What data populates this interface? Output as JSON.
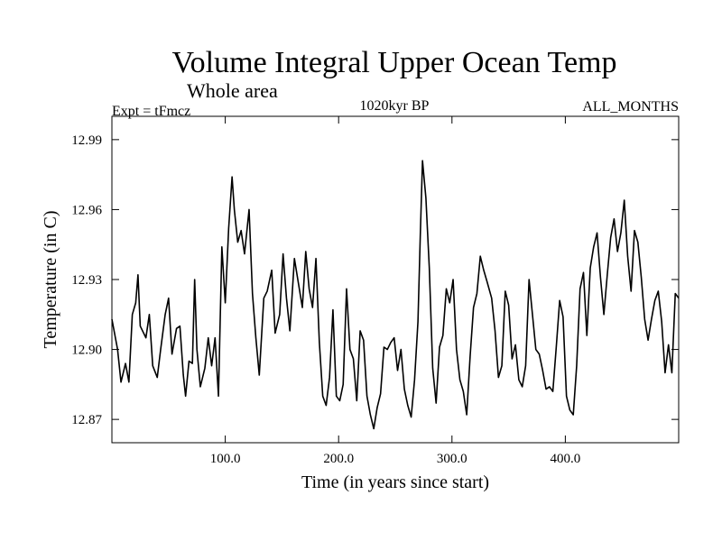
{
  "chart_data": {
    "type": "line",
    "title": "Volume Integral Upper Ocean Temp",
    "subtitle": "Whole area",
    "expt_label": "Expt = tFmcz",
    "period_label": "1020kyr BP",
    "months_label": "ALL_MONTHS",
    "xlabel": "Time (in years since start)",
    "ylabel": "Temperature (in C)",
    "xlim": [
      0,
      500
    ],
    "ylim": [
      12.86,
      13.0
    ],
    "x_ticks": [
      100,
      200,
      300,
      400
    ],
    "x_tick_labels": [
      "100.0",
      "200.0",
      "300.0",
      "400.0"
    ],
    "y_ticks": [
      12.87,
      12.9,
      12.93,
      12.96,
      12.99
    ],
    "y_tick_labels": [
      "12.87",
      "12.90",
      "12.93",
      "12.96",
      "12.99"
    ],
    "grid": false,
    "series": [
      {
        "name": "Volume Integral Upper Ocean Temp",
        "x": [
          0,
          5,
          8,
          12,
          15,
          18,
          21,
          23,
          25,
          30,
          33,
          36,
          40,
          43,
          47,
          50,
          53,
          57,
          60,
          63,
          65,
          68,
          71,
          73,
          75,
          78,
          82,
          85,
          88,
          91,
          94,
          97,
          100,
          103,
          106,
          108,
          111,
          114,
          117,
          121,
          124,
          127,
          130,
          134,
          137,
          141,
          144,
          148,
          151,
          154,
          157,
          161,
          164,
          168,
          171,
          174,
          177,
          180,
          183,
          186,
          189,
          192,
          195,
          198,
          201,
          204,
          207,
          210,
          213,
          216,
          219,
          222,
          225,
          228,
          231,
          234,
          237,
          240,
          243,
          246,
          249,
          252,
          255,
          258,
          261,
          264,
          267,
          270,
          272,
          274,
          277,
          280,
          283,
          286,
          289,
          292,
          295,
          298,
          301,
          304,
          307,
          310,
          313,
          316,
          319,
          322,
          325,
          328,
          331,
          335,
          338,
          341,
          344,
          347,
          350,
          353,
          356,
          359,
          362,
          365,
          368,
          371,
          374,
          377,
          380,
          383,
          386,
          389,
          392,
          395,
          398,
          401,
          404,
          407,
          410,
          413,
          416,
          419,
          422,
          425,
          428,
          431,
          434,
          437,
          440,
          443,
          446,
          449,
          452,
          455,
          458,
          461,
          464,
          467,
          470,
          473,
          476,
          479,
          482,
          485,
          488,
          491,
          494,
          497,
          500
        ],
        "values": [
          12.913,
          12.9,
          12.886,
          12.894,
          12.886,
          12.915,
          12.92,
          12.932,
          12.91,
          12.905,
          12.915,
          12.893,
          12.888,
          12.9,
          12.915,
          12.922,
          12.898,
          12.909,
          12.91,
          12.889,
          12.88,
          12.895,
          12.894,
          12.93,
          12.9,
          12.884,
          12.892,
          12.905,
          12.893,
          12.905,
          12.88,
          12.944,
          12.92,
          12.952,
          12.974,
          12.96,
          12.946,
          12.951,
          12.941,
          12.96,
          12.924,
          12.905,
          12.889,
          12.922,
          12.925,
          12.934,
          12.907,
          12.915,
          12.941,
          12.922,
          12.908,
          12.939,
          12.93,
          12.918,
          12.942,
          12.926,
          12.918,
          12.939,
          12.903,
          12.88,
          12.876,
          12.888,
          12.917,
          12.88,
          12.878,
          12.885,
          12.926,
          12.9,
          12.896,
          12.878,
          12.908,
          12.904,
          12.88,
          12.872,
          12.866,
          12.875,
          12.881,
          12.901,
          12.9,
          12.903,
          12.905,
          12.891,
          12.9,
          12.883,
          12.876,
          12.871,
          12.887,
          12.912,
          12.948,
          12.981,
          12.965,
          12.935,
          12.892,
          12.877,
          12.901,
          12.906,
          12.926,
          12.92,
          12.93,
          12.9,
          12.887,
          12.882,
          12.872,
          12.897,
          12.918,
          12.924,
          12.94,
          12.934,
          12.929,
          12.922,
          12.908,
          12.888,
          12.893,
          12.925,
          12.919,
          12.896,
          12.902,
          12.887,
          12.884,
          12.893,
          12.93,
          12.915,
          12.9,
          12.898,
          12.891,
          12.883,
          12.884,
          12.882,
          12.901,
          12.921,
          12.914,
          12.88,
          12.874,
          12.872,
          12.893,
          12.926,
          12.933,
          12.906,
          12.935,
          12.944,
          12.95,
          12.931,
          12.915,
          12.932,
          12.948,
          12.956,
          12.942,
          12.95,
          12.964,
          12.94,
          12.925,
          12.951,
          12.946,
          12.931,
          12.913,
          12.904,
          12.913,
          12.921,
          12.925,
          12.912,
          12.89,
          12.902,
          12.89,
          12.924,
          12.922
        ]
      }
    ]
  }
}
